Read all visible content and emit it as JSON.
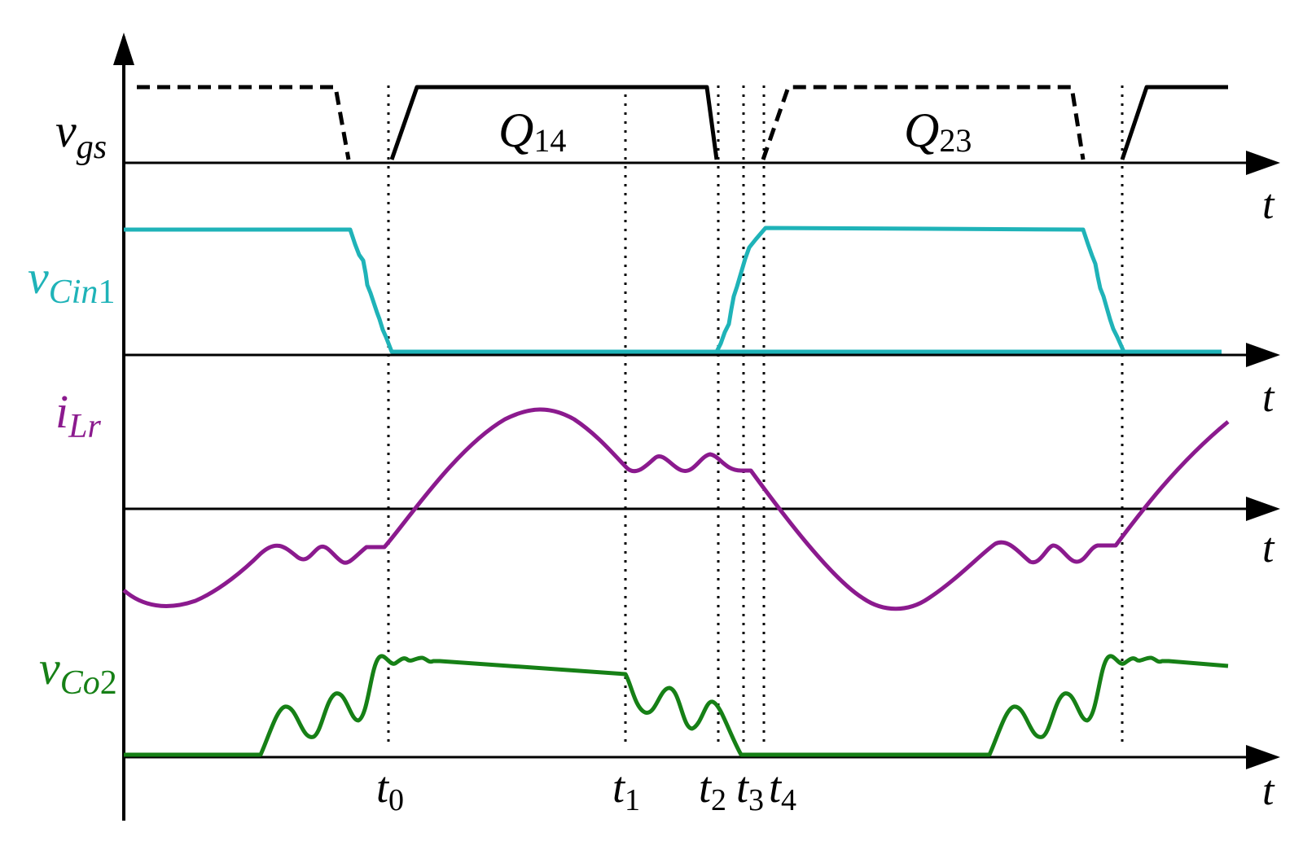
{
  "signals": {
    "vgs": {
      "main": "v",
      "sub": "gs",
      "sub_tail": "",
      "color": "#000000"
    },
    "vcin": {
      "main": "v",
      "sub": "Cin",
      "sub_tail": "1",
      "color": "#1fb3b8"
    },
    "ilr": {
      "main": "i",
      "sub": "Lr",
      "sub_tail": "",
      "color": "#8b1a8e"
    },
    "vco": {
      "main": "v",
      "sub": "Co",
      "sub_tail": "2",
      "color": "#168016"
    }
  },
  "axis_label": "t",
  "gates": [
    {
      "main": "Q",
      "sub": "14"
    },
    {
      "main": "Q",
      "sub": "23"
    }
  ],
  "time_markers": [
    {
      "main": "t",
      "sub": "0"
    },
    {
      "main": "t",
      "sub": "1"
    },
    {
      "main": "t",
      "sub": "2"
    },
    {
      "main": "t",
      "sub": "3"
    },
    {
      "main": "t",
      "sub": "4"
    }
  ]
}
